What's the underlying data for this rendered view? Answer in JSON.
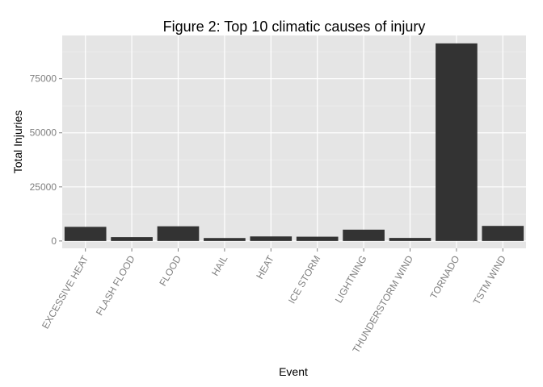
{
  "chart_data": {
    "type": "bar",
    "title": "Figure 2: Top 10 climatic causes of injury",
    "xlabel": "Event",
    "ylabel": "Total Injuries",
    "categories": [
      "EXCESSIVE HEAT",
      "FLASH FLOOD",
      "FLOOD",
      "HAIL",
      "HEAT",
      "ICE STORM",
      "LIGHTNING",
      "THUNDERSTORM WIND",
      "TORNADO",
      "TSTM WIND"
    ],
    "values": [
      6525,
      1777,
      6789,
      1361,
      2100,
      1975,
      5230,
      1400,
      91346,
      6957
    ],
    "ylim": [
      -3400,
      95000
    ],
    "yticks": [
      0,
      25000,
      50000,
      75000
    ],
    "ytick_labels": [
      "0",
      "25000",
      "50000",
      "75000"
    ],
    "grid": true,
    "colors": {
      "panel": "#e5e5e5",
      "grid_major": "#ffffff",
      "grid_minor": "#f2f2f2",
      "bar": "#333333"
    }
  }
}
